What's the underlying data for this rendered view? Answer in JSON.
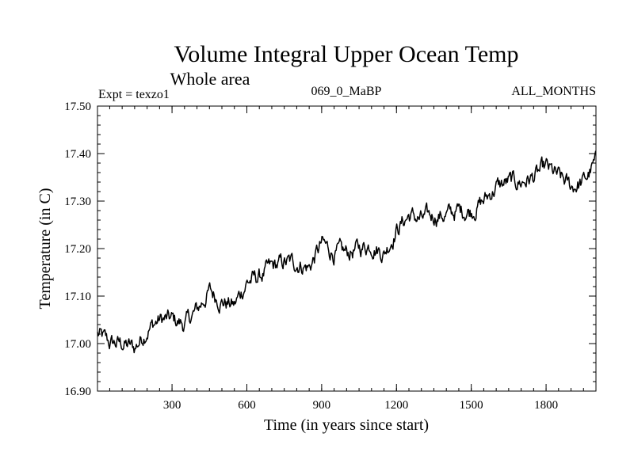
{
  "chart_data": {
    "type": "line",
    "title": "Volume Integral Upper Ocean Temp",
    "subtitle": "Whole area",
    "header_left": "Expt = texzo1",
    "header_center": "069_0_MaBP",
    "header_right": "ALL_MONTHS",
    "xlabel": "Time (in years since start)",
    "ylabel": "Temperature (in C)",
    "xlim": [
      1,
      2000
    ],
    "ylim": [
      16.9,
      17.5
    ],
    "xticks": [
      300,
      600,
      900,
      1200,
      1500,
      1800
    ],
    "xtick_labels": [
      "300",
      "600",
      "900",
      "1200",
      "1500",
      "1800"
    ],
    "yticks": [
      16.9,
      17.0,
      17.1,
      17.2,
      17.3,
      17.4,
      17.5
    ],
    "ytick_labels": [
      "16.90",
      "17.00",
      "17.10",
      "17.20",
      "17.30",
      "17.40",
      "17.50"
    ],
    "grid": false,
    "line_color": "#000000",
    "series": [
      {
        "name": "texzo1",
        "x": [
          1,
          50,
          100,
          150,
          200,
          250,
          300,
          350,
          400,
          450,
          500,
          550,
          600,
          650,
          700,
          750,
          800,
          850,
          900,
          950,
          1000,
          1050,
          1100,
          1150,
          1200,
          1250,
          1300,
          1350,
          1400,
          1450,
          1500,
          1550,
          1600,
          1650,
          1700,
          1750,
          1800,
          1850,
          1900,
          1950,
          2000
        ],
        "values": [
          17.02,
          17.0,
          17.0,
          16.99,
          17.03,
          17.05,
          17.05,
          17.04,
          17.07,
          17.11,
          17.09,
          17.08,
          17.13,
          17.14,
          17.16,
          17.17,
          17.17,
          17.16,
          17.21,
          17.19,
          17.19,
          17.2,
          17.21,
          17.19,
          17.24,
          17.27,
          17.26,
          17.27,
          17.27,
          17.28,
          17.28,
          17.3,
          17.33,
          17.34,
          17.34,
          17.35,
          17.37,
          17.35,
          17.33,
          17.34,
          17.38
        ]
      }
    ]
  }
}
